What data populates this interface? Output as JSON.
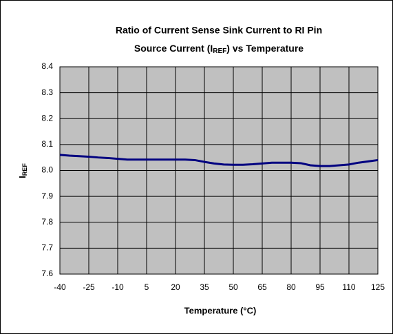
{
  "chart_data": {
    "type": "line",
    "title": [
      "Ratio of Current Sense Sink Current to RI Pin",
      {
        "text": "Source Current (I",
        "sub": "REF",
        "rest": ") vs Temperature"
      }
    ],
    "y_label": {
      "text": "I",
      "sub": "REF"
    },
    "x_label": "Temperature (°C)",
    "x": [
      -40,
      -35,
      -30,
      -25,
      -20,
      -15,
      -10,
      -5,
      0,
      5,
      10,
      15,
      20,
      25,
      30,
      35,
      40,
      45,
      50,
      55,
      60,
      65,
      70,
      75,
      80,
      85,
      90,
      95,
      100,
      105,
      110,
      115,
      120,
      125
    ],
    "series": [
      {
        "name": "IREF",
        "color": "#000080",
        "values": [
          8.06,
          8.057,
          8.055,
          8.053,
          8.05,
          8.048,
          8.045,
          8.042,
          8.042,
          8.042,
          8.042,
          8.042,
          8.042,
          8.042,
          8.04,
          8.033,
          8.027,
          8.023,
          8.022,
          8.022,
          8.024,
          8.027,
          8.03,
          8.03,
          8.03,
          8.028,
          8.02,
          8.017,
          8.017,
          8.02,
          8.023,
          8.03,
          8.035,
          8.04
        ]
      }
    ],
    "xlim": [
      -40,
      125
    ],
    "xticks": [
      -40,
      -25,
      -10,
      5,
      20,
      35,
      50,
      65,
      80,
      95,
      110,
      125
    ],
    "ylim": [
      7.6,
      8.4
    ],
    "yticks": [
      7.6,
      7.7,
      7.8,
      7.9,
      {
        "value": 8,
        "label": "8.0"
      },
      8.1,
      8.2,
      8.3,
      8.4
    ],
    "grid": true,
    "plot_background": "#c0c0c0"
  }
}
